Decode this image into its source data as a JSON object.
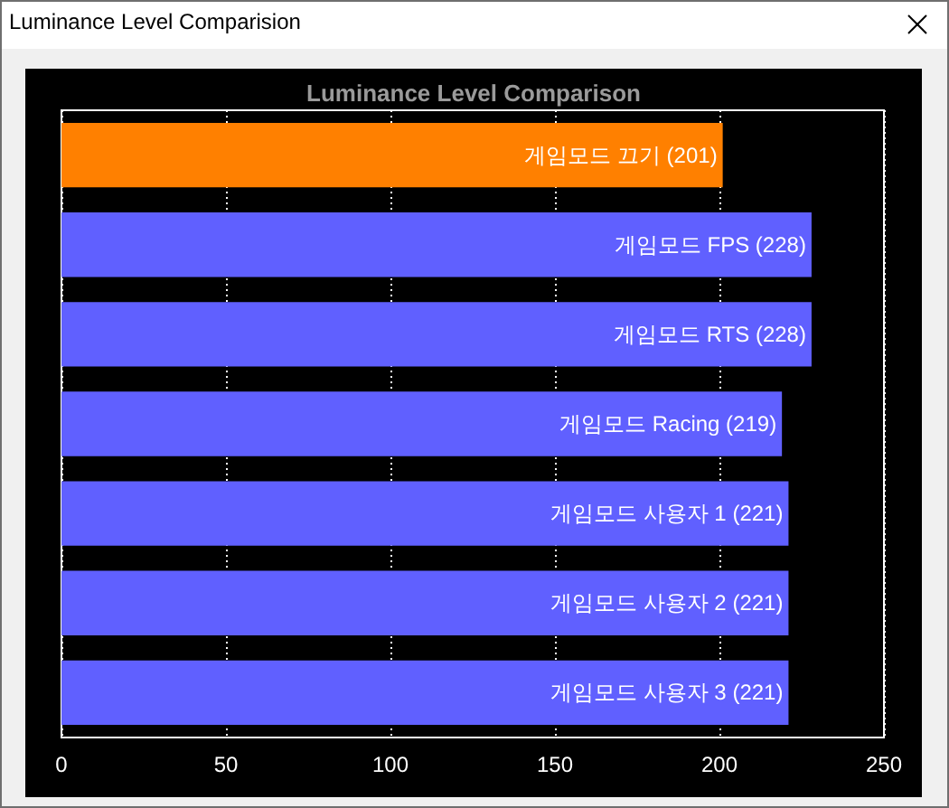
{
  "chart_data": {
    "type": "bar",
    "orientation": "horizontal",
    "title": "Luminance Level Comparison",
    "annotations": [
      "Luminance Level Comparision"
    ],
    "categories": [
      "게임모드 끄기",
      "게임모드 FPS",
      "게임모드 RTS",
      "게임모드 Racing",
      "게임모드 사용자 1",
      "게임모드 사용자 2",
      "게임모드 사용자 3"
    ],
    "values": [
      201,
      228,
      228,
      219,
      221,
      221,
      221
    ],
    "value_labels": [
      "(201)",
      "(228)",
      "(228)",
      "(219)",
      "(221)",
      "(221)",
      "(221)"
    ],
    "colors": [
      "#ff8000",
      "#6060ff",
      "#6060ff",
      "#6060ff",
      "#6060ff",
      "#6060ff",
      "#6060ff"
    ],
    "xlim": [
      0,
      250
    ],
    "xticks": [
      0,
      50,
      100,
      150,
      200,
      250
    ],
    "grid": "x",
    "tick_labels": "x"
  }
}
